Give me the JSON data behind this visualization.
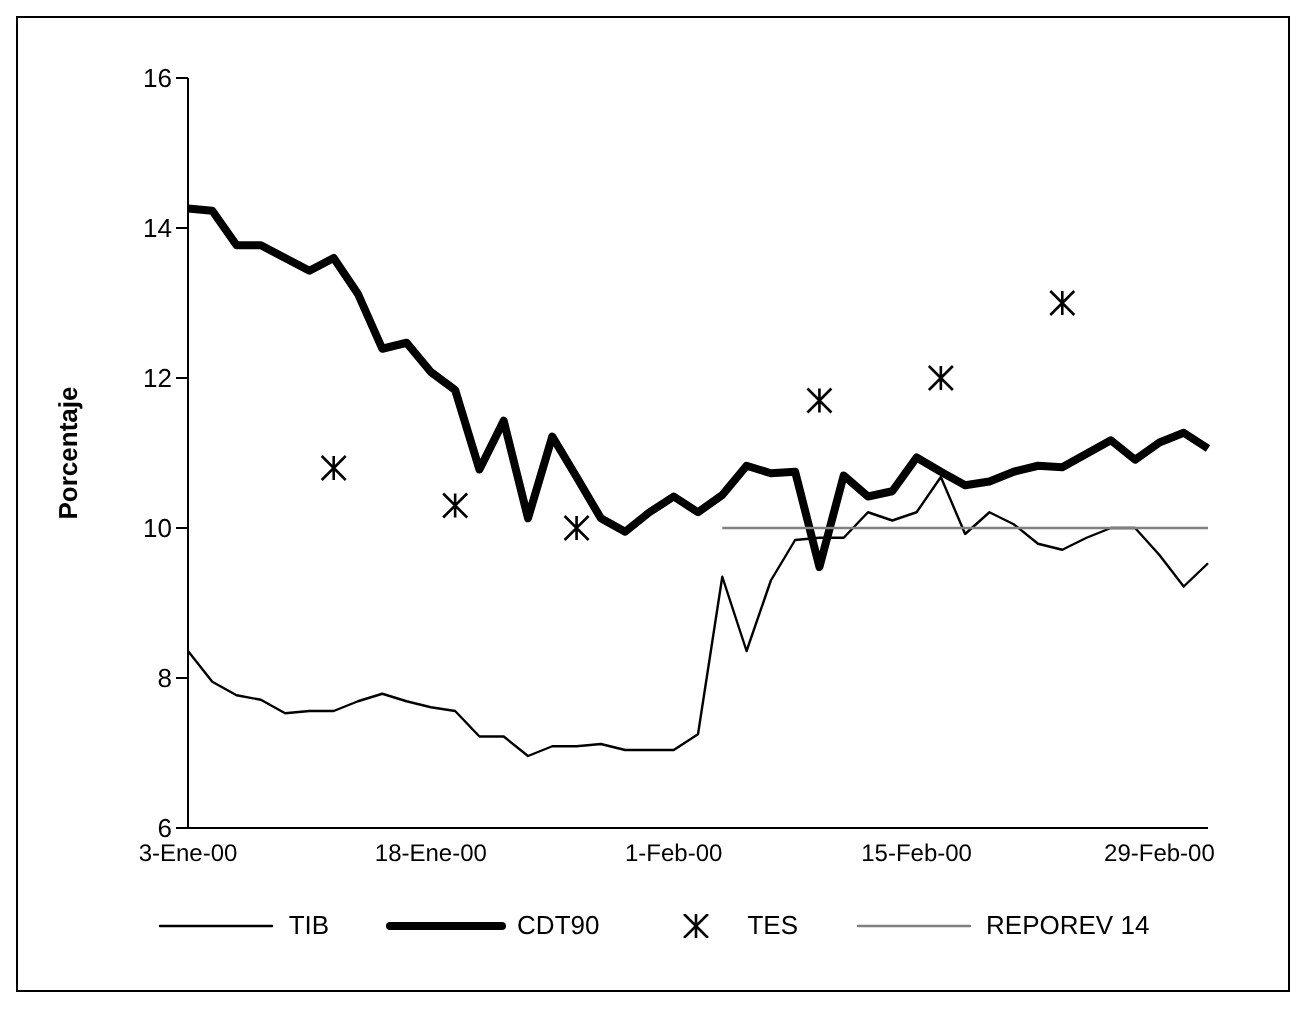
{
  "chart_data": {
    "type": "line",
    "categories": [
      "3-Ene-00",
      null,
      null,
      null,
      null,
      null,
      null,
      null,
      null,
      null,
      "18-Ene-00",
      null,
      null,
      null,
      null,
      null,
      null,
      null,
      null,
      null,
      "1-Feb-00",
      null,
      null,
      null,
      null,
      null,
      null,
      null,
      null,
      null,
      "15-Feb-00",
      null,
      null,
      null,
      null,
      null,
      null,
      null,
      null,
      null,
      "29-Feb-00",
      null,
      null
    ],
    "series": [
      {
        "name": "TIB",
        "color": "#000000",
        "marker": "none",
        "values": [
          8.36,
          7.95,
          7.77,
          7.71,
          7.53,
          7.56,
          7.56,
          7.69,
          7.79,
          7.69,
          7.61,
          7.56,
          7.22,
          7.22,
          6.96,
          7.09,
          7.09,
          7.12,
          7.04,
          7.04,
          7.04,
          7.25,
          9.35,
          8.36,
          9.3,
          9.84,
          9.87,
          9.87,
          10.21,
          10.1,
          10.21,
          10.68,
          9.92,
          10.21,
          10.05,
          9.79,
          9.71,
          9.87,
          10.0,
          10.0,
          9.64,
          9.22,
          9.53
        ]
      },
      {
        "name": "CDT90",
        "color": "#000000",
        "marker": "none",
        "values": [
          14.26,
          14.23,
          13.77,
          13.77,
          13.6,
          13.43,
          13.6,
          13.12,
          12.39,
          12.47,
          12.08,
          11.84,
          10.78,
          11.43,
          10.13,
          11.22,
          10.68,
          10.13,
          9.95,
          10.21,
          10.42,
          10.21,
          10.44,
          10.83,
          10.73,
          10.75,
          9.48,
          10.7,
          10.42,
          10.49,
          10.94,
          10.75,
          10.57,
          10.62,
          10.75,
          10.83,
          10.81,
          10.99,
          11.17,
          10.91,
          11.14,
          11.27,
          11.06
        ]
      },
      {
        "name": "TES",
        "type": "scatter",
        "color": "#000000",
        "marker": "cross",
        "values": [
          null,
          null,
          null,
          null,
          null,
          null,
          10.8,
          null,
          null,
          null,
          null,
          10.3,
          null,
          null,
          null,
          null,
          10.0,
          null,
          null,
          null,
          null,
          null,
          null,
          null,
          null,
          null,
          11.7,
          null,
          null,
          null,
          null,
          12.0,
          null,
          null,
          null,
          null,
          13.0,
          null,
          null,
          null,
          null,
          null,
          null
        ]
      },
      {
        "name": "REPOREV 14",
        "color": "#808080",
        "marker": "none",
        "values": [
          null,
          null,
          null,
          null,
          null,
          null,
          null,
          null,
          null,
          null,
          null,
          null,
          null,
          null,
          null,
          null,
          null,
          null,
          null,
          null,
          null,
          null,
          10,
          10,
          10,
          10,
          10,
          10,
          10,
          10,
          10,
          10,
          10,
          10,
          10,
          10,
          10,
          10,
          10,
          10,
          10,
          10,
          10
        ]
      }
    ],
    "ylabel": "Porcentaje",
    "ylim": [
      6,
      16
    ],
    "yticks": [
      6,
      8,
      10,
      12,
      14,
      16
    ],
    "grid": false,
    "legend": "bottom"
  }
}
